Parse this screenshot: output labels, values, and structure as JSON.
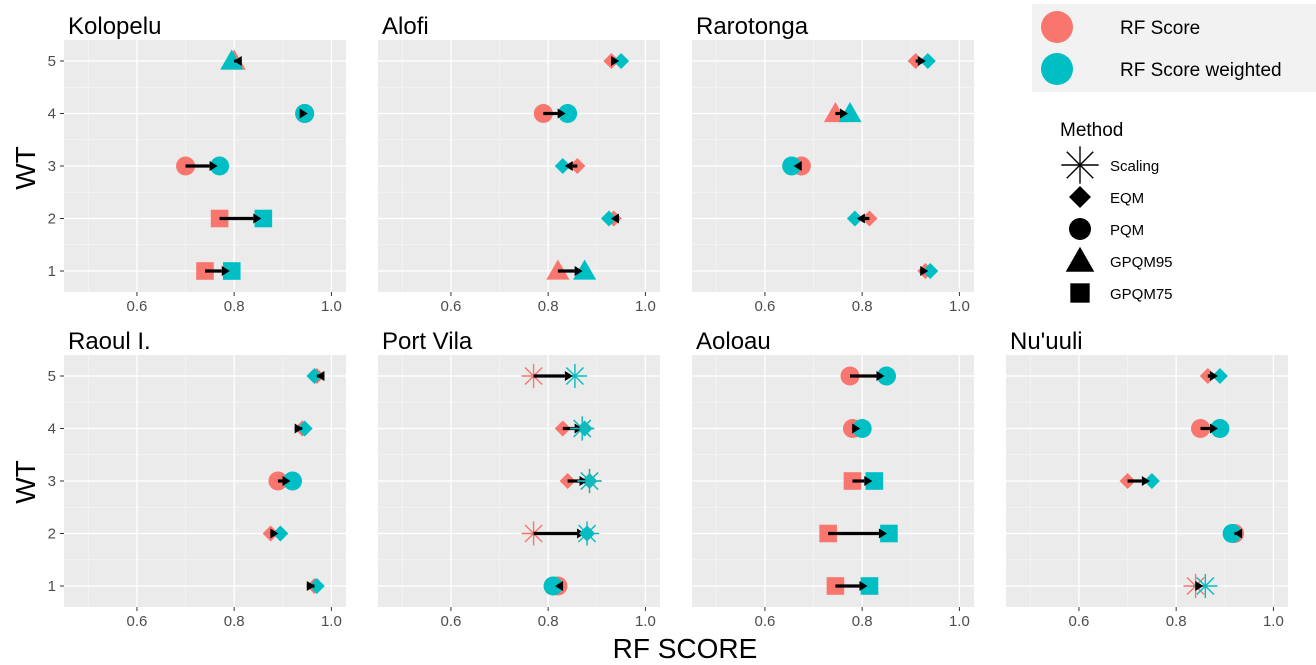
{
  "chart_data": {
    "type": "scatter",
    "x_label": "RF SCORE",
    "y_label": "WT",
    "xlim": [
      0.45,
      1.03
    ],
    "ylim": [
      0.6,
      5.4
    ],
    "x_ticks": [
      0.6,
      0.8,
      1.0
    ],
    "x_tick_labels": [
      "0.6",
      "0.8",
      "1.0"
    ],
    "y_ticks": [
      1,
      2,
      3,
      4,
      5
    ],
    "y_tick_labels": [
      "1",
      "2",
      "3",
      "4",
      "5"
    ],
    "grid": true,
    "legend_placement": "right",
    "color_legend": [
      {
        "label": "RF Score",
        "color": "#F8766D"
      },
      {
        "label": "RF Score weighted",
        "color": "#00BFC4"
      }
    ],
    "shape_legend_title": "Method",
    "shape_legend": [
      {
        "label": "Scaling",
        "shape": "asterisk"
      },
      {
        "label": "EQM",
        "shape": "diamond"
      },
      {
        "label": "PQM",
        "shape": "circle"
      },
      {
        "label": "GPQM95",
        "shape": "triangle"
      },
      {
        "label": "GPQM75",
        "shape": "square"
      }
    ],
    "panels": [
      {
        "title": "Kolopelu",
        "points": [
          {
            "wt": 5,
            "rf": 0.8,
            "rfw": 0.795,
            "method": "GPQM95"
          },
          {
            "wt": 4,
            "rf": 0.945,
            "rfw": 0.945,
            "method": "PQM"
          },
          {
            "wt": 3,
            "rf": 0.7,
            "rfw": 0.77,
            "method": "PQM"
          },
          {
            "wt": 2,
            "rf": 0.77,
            "rfw": 0.86,
            "method": "GPQM75"
          },
          {
            "wt": 1,
            "rf": 0.74,
            "rfw": 0.795,
            "method": "GPQM75"
          }
        ]
      },
      {
        "title": "Alofi",
        "points": [
          {
            "wt": 5,
            "rf": 0.93,
            "rfw": 0.95,
            "method": "EQM"
          },
          {
            "wt": 4,
            "rf": 0.79,
            "rfw": 0.84,
            "method": "PQM"
          },
          {
            "wt": 3,
            "rf": 0.86,
            "rfw": 0.83,
            "method": "EQM"
          },
          {
            "wt": 2,
            "rf": 0.935,
            "rfw": 0.925,
            "method": "EQM"
          },
          {
            "wt": 1,
            "rf": 0.82,
            "rfw": 0.875,
            "method": "GPQM95"
          }
        ]
      },
      {
        "title": "Rarotonga",
        "points": [
          {
            "wt": 5,
            "rf": 0.91,
            "rfw": 0.935,
            "method": "EQM"
          },
          {
            "wt": 4,
            "rf": 0.745,
            "rfw": 0.775,
            "method": "GPQM95"
          },
          {
            "wt": 3,
            "rf": 0.675,
            "rfw": 0.655,
            "method": "PQM"
          },
          {
            "wt": 2,
            "rf": 0.815,
            "rfw": 0.785,
            "method": "EQM"
          },
          {
            "wt": 1,
            "rf": 0.93,
            "rfw": 0.94,
            "method": "EQM"
          }
        ]
      },
      {
        "title": "Raoul I.",
        "points": [
          {
            "wt": 5,
            "rf": 0.97,
            "rfw": 0.965,
            "method": "EQM"
          },
          {
            "wt": 4,
            "rf": 0.94,
            "rfw": 0.945,
            "method": "EQM"
          },
          {
            "wt": 3,
            "rf": 0.89,
            "rfw": 0.92,
            "method": "PQM"
          },
          {
            "wt": 2,
            "rf": 0.875,
            "rfw": 0.895,
            "method": "EQM"
          },
          {
            "wt": 1,
            "rf": 0.965,
            "rfw": 0.97,
            "method": "EQM"
          }
        ]
      },
      {
        "title": "Port Vila",
        "points": [
          {
            "wt": 5,
            "rf": 0.77,
            "rfw": 0.855,
            "method": "Scaling"
          },
          {
            "wt": 4,
            "rf": 0.83,
            "rfw": 0.875,
            "method": "EQM"
          },
          {
            "wt": 4,
            "rf": 0.87,
            "rfw": 0.87,
            "method": "Scaling",
            "overlay": true
          },
          {
            "wt": 3,
            "rf": 0.84,
            "rfw": 0.885,
            "method": "EQM"
          },
          {
            "wt": 3,
            "rf": 0.885,
            "rfw": 0.885,
            "method": "Scaling",
            "overlay": true
          },
          {
            "wt": 2,
            "rf": 0.77,
            "rfw": 0.88,
            "method": "Scaling"
          },
          {
            "wt": 2,
            "rf": 0.88,
            "rfw": 0.88,
            "method": "EQM",
            "overlay": true
          },
          {
            "wt": 1,
            "rf": 0.82,
            "rfw": 0.81,
            "method": "PQM"
          }
        ]
      },
      {
        "title": "Aoloau",
        "points": [
          {
            "wt": 5,
            "rf": 0.775,
            "rfw": 0.85,
            "method": "PQM"
          },
          {
            "wt": 4,
            "rf": 0.78,
            "rfw": 0.8,
            "method": "PQM"
          },
          {
            "wt": 3,
            "rf": 0.78,
            "rfw": 0.825,
            "method": "GPQM75"
          },
          {
            "wt": 2,
            "rf": 0.73,
            "rfw": 0.855,
            "method": "GPQM75"
          },
          {
            "wt": 1,
            "rf": 0.745,
            "rfw": 0.815,
            "method": "GPQM75"
          }
        ]
      },
      {
        "title": "Nu'uuli",
        "points": [
          {
            "wt": 5,
            "rf": 0.865,
            "rfw": 0.89,
            "method": "EQM"
          },
          {
            "wt": 4,
            "rf": 0.85,
            "rfw": 0.89,
            "method": "PQM"
          },
          {
            "wt": 3,
            "rf": 0.7,
            "rfw": 0.75,
            "method": "EQM"
          },
          {
            "wt": 2,
            "rf": 0.92,
            "rfw": 0.915,
            "method": "PQM"
          },
          {
            "wt": 1,
            "rf": 0.84,
            "rfw": 0.86,
            "method": "Scaling"
          }
        ]
      }
    ]
  }
}
